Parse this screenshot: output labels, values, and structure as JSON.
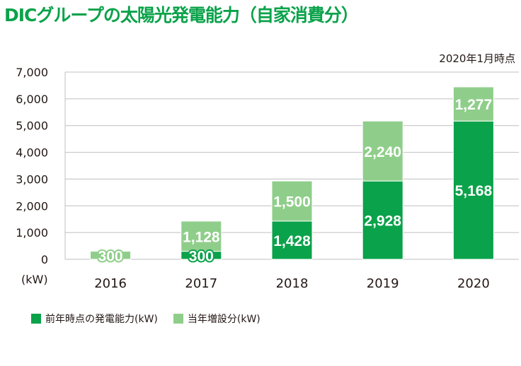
{
  "title": "DICグループの太陽光発電能力（自家消費分）",
  "date_note": "2020年1月時点",
  "unit_label": "(kW)",
  "colors": {
    "accent": "#0aa24a",
    "prior": "#0aa24a",
    "added": "#8fce8a"
  },
  "chart_data": {
    "type": "bar",
    "stacked": true,
    "title": "DICグループの太陽光発電能力（自家消費分）",
    "categories": [
      "2016",
      "2017",
      "2018",
      "2019",
      "2020"
    ],
    "series": [
      {
        "name": "前年時点の発電能力(kW)",
        "values": [
          0,
          300,
          1428,
          2928,
          5168
        ],
        "color": "#0aa24a"
      },
      {
        "name": "当年増設分(kW)",
        "values": [
          300,
          1128,
          1500,
          2240,
          1277
        ],
        "color": "#8fce8a"
      }
    ],
    "ylabel": "(kW)",
    "ylim": [
      0,
      7000
    ],
    "yticks": [
      "0",
      "1,000",
      "2,000",
      "3,000",
      "4,000",
      "5,000",
      "6,000",
      "7,000"
    ],
    "grid": true,
    "legend": "bottom-left"
  },
  "legend": {
    "items": [
      {
        "label": "前年時点の発電能力(kW)",
        "color": "#0aa24a"
      },
      {
        "label": "当年増設分(kW)",
        "color": "#8fce8a"
      }
    ]
  }
}
